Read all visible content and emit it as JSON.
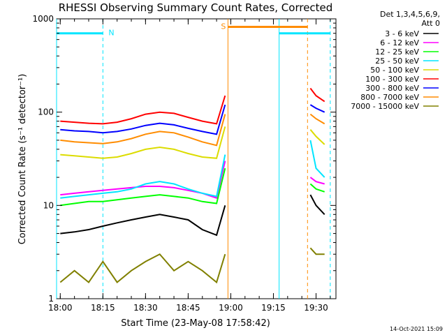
{
  "chart_data": {
    "type": "line",
    "title": "RHESSI Observing Summary Count Rates, Corrected",
    "xlabel": "Start Time (23-May-08 17:58:42)",
    "ylabel": "Corrected Count Rate (s⁻¹ detector⁻¹)",
    "x_ticks": [
      "18:00",
      "18:15",
      "18:30",
      "18:45",
      "19:00",
      "19:15",
      "19:30"
    ],
    "y_ticks": [
      "1",
      "10",
      "100",
      "1000"
    ],
    "yscale": "log",
    "ylim": [
      1,
      1000
    ],
    "xlim": [
      "17:58:42",
      "19:37:00"
    ],
    "grid": false,
    "legend_position": "right",
    "legend_header": [
      "Det 1,3,4,5,6,9,",
      "Att 0"
    ],
    "series": [
      {
        "name": "3 - 6 keV",
        "color": "#000000",
        "x": [
          "18:00",
          "18:05",
          "18:10",
          "18:15",
          "18:20",
          "18:25",
          "18:30",
          "18:35",
          "18:40",
          "18:45",
          "18:50",
          "18:55",
          "18:58",
          "19:28",
          "19:30",
          "19:33"
        ],
        "y": [
          5,
          5.2,
          5.5,
          6,
          6.5,
          7,
          7.5,
          8,
          7.5,
          7,
          5.5,
          4.8,
          10,
          13,
          10,
          8
        ]
      },
      {
        "name": "6 - 12 keV",
        "color": "#ff00ff",
        "x": [
          "18:00",
          "18:05",
          "18:10",
          "18:15",
          "18:20",
          "18:25",
          "18:30",
          "18:35",
          "18:40",
          "18:45",
          "18:50",
          "18:55",
          "18:58",
          "19:28",
          "19:30",
          "19:33"
        ],
        "y": [
          13,
          13.5,
          14,
          14.5,
          15,
          15.5,
          16,
          16,
          15.5,
          14.5,
          13.5,
          12,
          30,
          20,
          18,
          17
        ]
      },
      {
        "name": "12 - 25 keV",
        "color": "#00ff00",
        "x": [
          "18:00",
          "18:05",
          "18:10",
          "18:15",
          "18:20",
          "18:25",
          "18:30",
          "18:35",
          "18:40",
          "18:45",
          "18:50",
          "18:55",
          "18:58",
          "19:28",
          "19:30",
          "19:33"
        ],
        "y": [
          10,
          10.5,
          11,
          11,
          11.5,
          12,
          12.5,
          13,
          12.5,
          12,
          11,
          10.5,
          25,
          17,
          15,
          14
        ]
      },
      {
        "name": "25 - 50 keV",
        "color": "#00e5ff",
        "x": [
          "18:00",
          "18:05",
          "18:10",
          "18:15",
          "18:20",
          "18:25",
          "18:30",
          "18:35",
          "18:40",
          "18:45",
          "18:50",
          "18:55",
          "18:58",
          "19:28",
          "19:30",
          "19:33"
        ],
        "y": [
          12,
          12.5,
          13,
          13.5,
          14,
          15,
          17,
          18,
          17,
          15,
          13.5,
          12.5,
          35,
          50,
          25,
          20
        ]
      },
      {
        "name": "50 - 100 keV",
        "color": "#dcdc00",
        "x": [
          "18:00",
          "18:05",
          "18:10",
          "18:15",
          "18:20",
          "18:25",
          "18:30",
          "18:35",
          "18:40",
          "18:45",
          "18:50",
          "18:55",
          "18:58",
          "19:28",
          "19:30",
          "19:33"
        ],
        "y": [
          35,
          34,
          33,
          32,
          33,
          36,
          40,
          42,
          40,
          36,
          33,
          32,
          70,
          65,
          55,
          45
        ]
      },
      {
        "name": "100 - 300 keV",
        "color": "#ff0000",
        "x": [
          "18:00",
          "18:05",
          "18:10",
          "18:15",
          "18:20",
          "18:25",
          "18:30",
          "18:35",
          "18:40",
          "18:45",
          "18:50",
          "18:55",
          "18:58",
          "19:28",
          "19:30",
          "19:33"
        ],
        "y": [
          80,
          78,
          76,
          75,
          78,
          85,
          95,
          100,
          97,
          88,
          80,
          75,
          150,
          180,
          150,
          130
        ]
      },
      {
        "name": "300 - 800 keV",
        "color": "#0000ff",
        "x": [
          "18:00",
          "18:05",
          "18:10",
          "18:15",
          "18:20",
          "18:25",
          "18:30",
          "18:35",
          "18:40",
          "18:45",
          "18:50",
          "18:55",
          "18:58",
          "19:28",
          "19:30",
          "19:33"
        ],
        "y": [
          65,
          63,
          62,
          60,
          62,
          66,
          72,
          76,
          73,
          67,
          62,
          58,
          120,
          120,
          110,
          100
        ]
      },
      {
        "name": "800 - 7000 keV",
        "color": "#ff8c00",
        "x": [
          "18:00",
          "18:05",
          "18:10",
          "18:15",
          "18:20",
          "18:25",
          "18:30",
          "18:35",
          "18:40",
          "18:45",
          "18:50",
          "18:55",
          "18:58",
          "19:28",
          "19:30",
          "19:33"
        ],
        "y": [
          50,
          48,
          47,
          46,
          48,
          52,
          58,
          62,
          60,
          54,
          48,
          44,
          95,
          95,
          85,
          75
        ]
      },
      {
        "name": "7000 - 15000 keV",
        "color": "#808000",
        "x": [
          "18:00",
          "18:05",
          "18:10",
          "18:15",
          "18:20",
          "18:25",
          "18:30",
          "18:35",
          "18:40",
          "18:45",
          "18:50",
          "18:55",
          "18:58",
          "19:28",
          "19:30",
          "19:33"
        ],
        "y": [
          1.5,
          2,
          1.5,
          2.5,
          1.5,
          2,
          2.5,
          3,
          2,
          2.5,
          2,
          1.5,
          3,
          3.5,
          3,
          3
        ]
      }
    ],
    "annotations": [
      {
        "label": "N",
        "color": "#00e5ff",
        "start": "17:58:42",
        "end": "18:15:00",
        "level": 700
      },
      {
        "label": "S",
        "color": "#ff8c00",
        "start": "18:59:00",
        "end": "19:27:00",
        "level": 820
      },
      {
        "label": "",
        "color": "#00e5ff",
        "start": "19:17:00",
        "end": "19:35:00",
        "level": 700
      }
    ],
    "vertical_markers": [
      {
        "time": "17:58:42",
        "color": "#00e5ff",
        "style": "solid"
      },
      {
        "time": "18:15:00",
        "color": "#00e5ff",
        "style": "dashed"
      },
      {
        "time": "18:59:00",
        "color": "#ff8c00",
        "style": "solid"
      },
      {
        "time": "19:17:00",
        "color": "#00e5ff",
        "style": "solid"
      },
      {
        "time": "19:27:00",
        "color": "#ff8c00",
        "style": "dashed"
      },
      {
        "time": "19:35:00",
        "color": "#00e5ff",
        "style": "dashed"
      }
    ],
    "data_gap": {
      "start": "18:59:00",
      "end": "19:27:00"
    }
  },
  "timestamp": "14-Oct-2021 15:09"
}
